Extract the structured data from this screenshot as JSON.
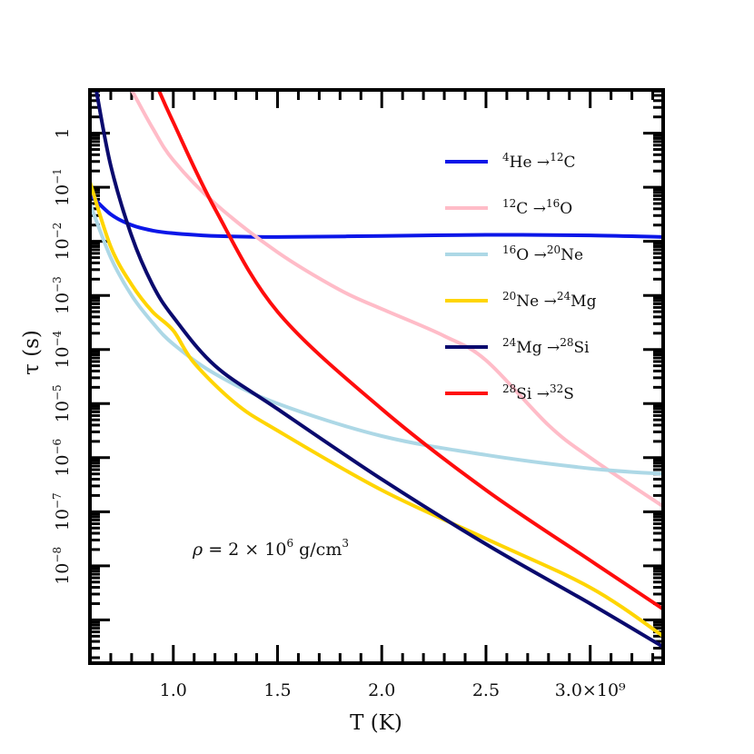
{
  "chart_data": {
    "type": "line",
    "xlabel": "T (K)",
    "ylabel": "τ (s)",
    "x_scale": "linear",
    "y_scale": "log",
    "xlim": [
      600000000.0,
      3350000000.0
    ],
    "ylim_log10": [
      -9.8,
      0.8
    ],
    "x_ticks": [
      {
        "value": 1000000000.0,
        "label": "1.0"
      },
      {
        "value": 1500000000.0,
        "label": "1.5"
      },
      {
        "value": 2000000000.0,
        "label": "2.0"
      },
      {
        "value": 2500000000.0,
        "label": "2.5"
      },
      {
        "value": 3000000000.0,
        "label": "3.0×10⁹"
      }
    ],
    "y_ticks": [
      {
        "exp": 0,
        "base": "1",
        "sup": ""
      },
      {
        "exp": -1,
        "base": "10",
        "sup": "−1"
      },
      {
        "exp": -2,
        "base": "10",
        "sup": "−2"
      },
      {
        "exp": -3,
        "base": "10",
        "sup": "−3"
      },
      {
        "exp": -4,
        "base": "10",
        "sup": "−4"
      },
      {
        "exp": -5,
        "base": "10",
        "sup": "−5"
      },
      {
        "exp": -6,
        "base": "10",
        "sup": "−6"
      },
      {
        "exp": -7,
        "base": "10",
        "sup": "−7"
      },
      {
        "exp": -8,
        "base": "10",
        "sup": "−8"
      }
    ],
    "annotation": {
      "prefix": "ρ = 2 × 10",
      "sup": "6",
      "suffix": " g/cm",
      "sup2": "3"
    },
    "legend_position": "upper-right",
    "grid": false,
    "series": [
      {
        "name": "⁴He →¹²C",
        "label": {
          "pre_sup": "4",
          "base": "He →",
          "sup": "12",
          "post": "C"
        },
        "color": "#0b16e8",
        "x": [
          600000000.0,
          700000000.0,
          800000000.0,
          900000000.0,
          1000000000.0,
          1200000000.0,
          1500000000.0,
          2000000000.0,
          2500000000.0,
          3000000000.0,
          3350000000.0
        ],
        "log10_y": [
          -1.13,
          -1.5,
          -1.7,
          -1.8,
          -1.85,
          -1.9,
          -1.92,
          -1.9,
          -1.88,
          -1.89,
          -1.92
        ]
      },
      {
        "name": "¹²C →¹⁶O",
        "label": {
          "pre_sup": "12",
          "base": "C →",
          "sup": "16",
          "post": "O"
        },
        "color": "#ffbcc8",
        "x": [
          800000000.0,
          900000000.0,
          1000000000.0,
          1200000000.0,
          1500000000.0,
          1800000000.0,
          2000000000.0,
          2300000000.0,
          2500000000.0,
          2800000000.0,
          3000000000.0,
          3350000000.0
        ],
        "log10_y": [
          0.8,
          0.1,
          -0.5,
          -1.3,
          -2.2,
          -2.9,
          -3.25,
          -3.75,
          -4.2,
          -5.4,
          -6.0,
          -6.9
        ]
      },
      {
        "name": "¹⁶O →²⁰Ne",
        "label": {
          "pre_sup": "16",
          "base": "O →",
          "sup": "20",
          "post": "Ne"
        },
        "color": "#add8e6",
        "x": [
          600000000.0,
          700000000.0,
          800000000.0,
          900000000.0,
          1000000000.0,
          1200000000.0,
          1500000000.0,
          2000000000.0,
          2500000000.0,
          3000000000.0,
          3350000000.0
        ],
        "log10_y": [
          -1.3,
          -2.3,
          -3.0,
          -3.5,
          -3.9,
          -4.45,
          -5.0,
          -5.6,
          -5.95,
          -6.2,
          -6.3
        ]
      },
      {
        "name": "²⁰Ne →²⁴Mg",
        "label": {
          "pre_sup": "20",
          "base": "Ne →",
          "sup": "24",
          "post": "Mg"
        },
        "color": "#ffd500",
        "x": [
          600000000.0,
          700000000.0,
          800000000.0,
          900000000.0,
          1000000000.0,
          1100000000.0,
          1300000000.0,
          1500000000.0,
          2000000000.0,
          2500000000.0,
          3000000000.0,
          3350000000.0
        ],
        "log10_y": [
          -0.9,
          -2.1,
          -2.8,
          -3.3,
          -3.65,
          -4.25,
          -5.0,
          -5.5,
          -6.6,
          -7.5,
          -8.4,
          -9.3
        ]
      },
      {
        "name": "²⁴Mg →²⁸Si",
        "label": {
          "pre_sup": "24",
          "base": "Mg →",
          "sup": "28",
          "post": "Si"
        },
        "color": "#0a0a6e",
        "x": [
          630000000.0,
          700000000.0,
          800000000.0,
          900000000.0,
          1000000000.0,
          1200000000.0,
          1500000000.0,
          2000000000.0,
          2500000000.0,
          3000000000.0,
          3350000000.0
        ],
        "log10_y": [
          0.8,
          -0.6,
          -1.9,
          -2.8,
          -3.4,
          -4.3,
          -5.1,
          -6.4,
          -7.6,
          -8.7,
          -9.5
        ]
      },
      {
        "name": "²⁸Si →³²S",
        "label": {
          "pre_sup": "28",
          "base": "Si →",
          "sup": "32",
          "post": "S"
        },
        "color": "#ff0d0d",
        "x": [
          930000000.0,
          1000000000.0,
          1200000000.0,
          1500000000.0,
          2000000000.0,
          2500000000.0,
          3000000000.0,
          3350000000.0
        ],
        "log10_y": [
          0.8,
          0.2,
          -1.4,
          -3.3,
          -5.1,
          -6.6,
          -7.9,
          -8.8
        ]
      }
    ]
  }
}
